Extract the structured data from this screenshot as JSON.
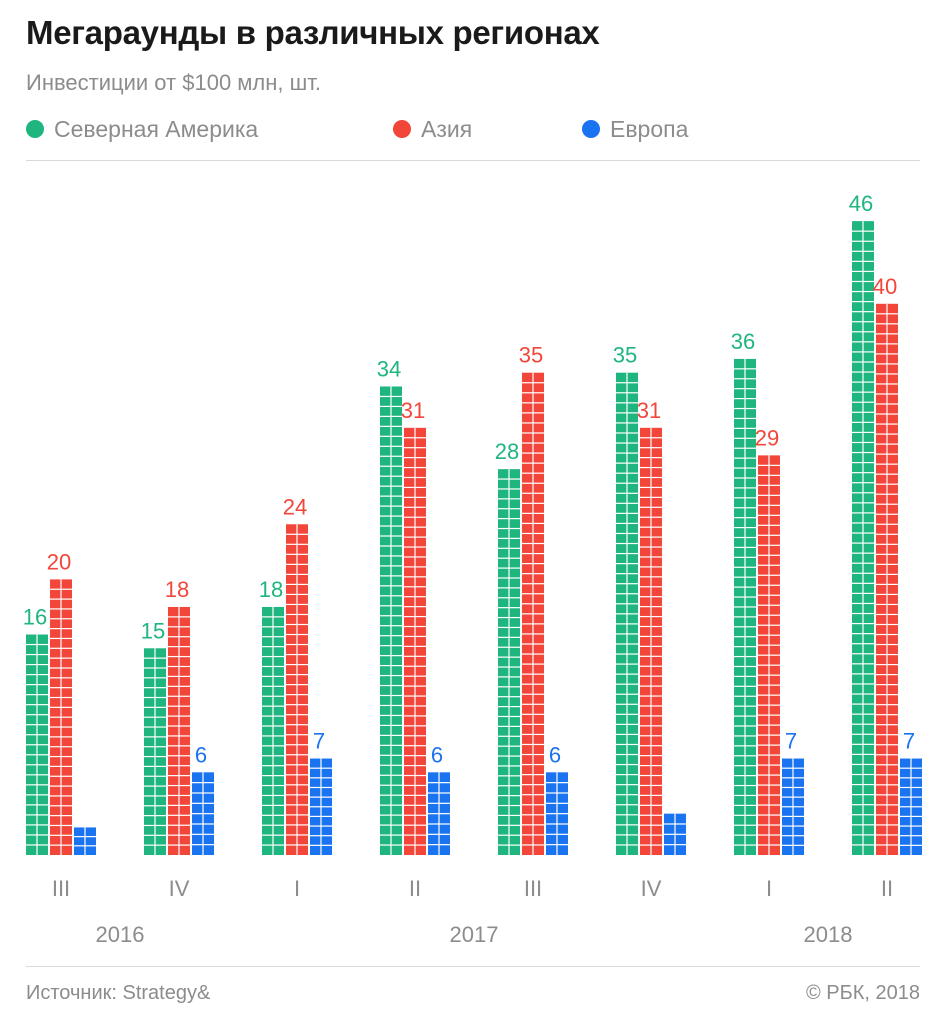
{
  "header": {
    "title": "Мегараунды в различных регионах",
    "subtitle": "Инвестиции от $100 млн, шт."
  },
  "legend": [
    {
      "label": "Северная Америка",
      "color": "#1fb57f"
    },
    {
      "label": "Азия",
      "color": "#f2463a"
    },
    {
      "label": "Европа",
      "color": "#1a73f0"
    }
  ],
  "chart_data": {
    "type": "bar",
    "categories": [
      "III",
      "IV",
      "I",
      "II",
      "III",
      "IV",
      "I",
      "II"
    ],
    "year_labels": [
      "2016",
      "2017",
      "2018"
    ],
    "series": [
      {
        "name": "Северная Америка",
        "color": "#1fb57f",
        "values": [
          16,
          15,
          18,
          34,
          28,
          35,
          36,
          46
        ]
      },
      {
        "name": "Азия",
        "color": "#f2463a",
        "values": [
          20,
          18,
          24,
          31,
          35,
          31,
          29,
          40
        ]
      },
      {
        "name": "Европа",
        "color": "#1a73f0",
        "values": [
          2,
          6,
          7,
          6,
          6,
          3,
          7,
          7
        ]
      }
    ],
    "value_labels_shown": [
      [
        true,
        true,
        true,
        true,
        true,
        true,
        true,
        true
      ],
      [
        true,
        true,
        true,
        true,
        true,
        true,
        true,
        true
      ],
      [
        false,
        true,
        true,
        true,
        true,
        false,
        true,
        true
      ]
    ],
    "ylim": [
      0,
      46
    ],
    "grid": false
  },
  "footer": {
    "source": "Источник: Strategy&",
    "copyright": "© РБК, 2018"
  }
}
